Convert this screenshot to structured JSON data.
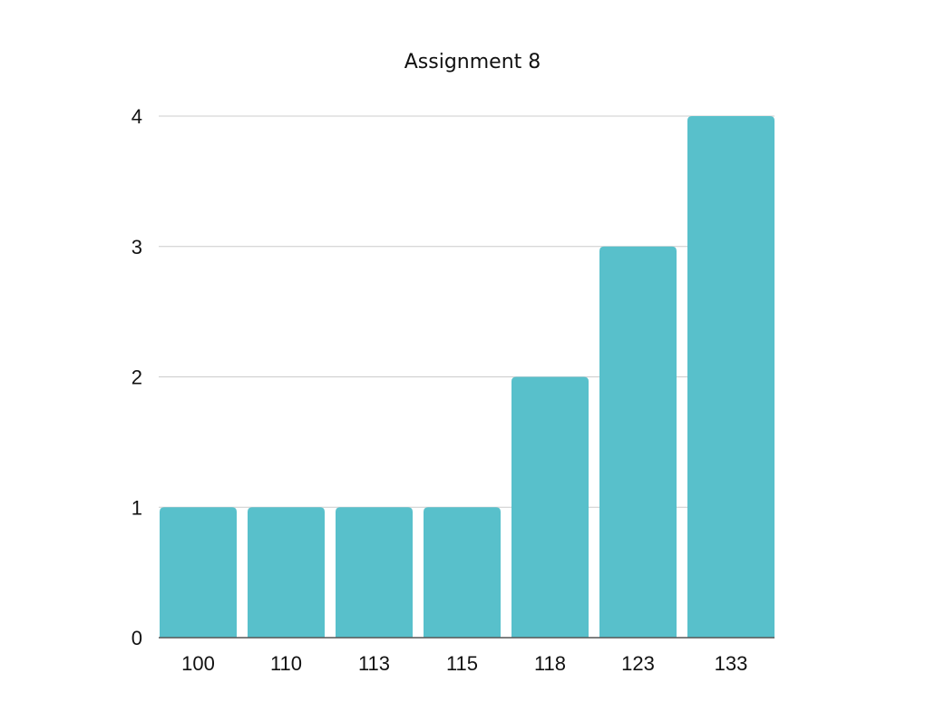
{
  "chart_data": {
    "type": "bar",
    "title": "Assignment 8",
    "xlabel": "",
    "ylabel": "",
    "categories": [
      "100",
      "110",
      "113",
      "115",
      "118",
      "123",
      "133"
    ],
    "values": [
      1,
      1,
      1,
      1,
      2,
      3,
      4
    ],
    "ylim": [
      0,
      4
    ],
    "yticks": [
      "0",
      "1",
      "2",
      "3",
      "4"
    ],
    "grid": true,
    "legend": "none",
    "bar_color": "#58c0cb",
    "grid_color": "#cccccc"
  }
}
